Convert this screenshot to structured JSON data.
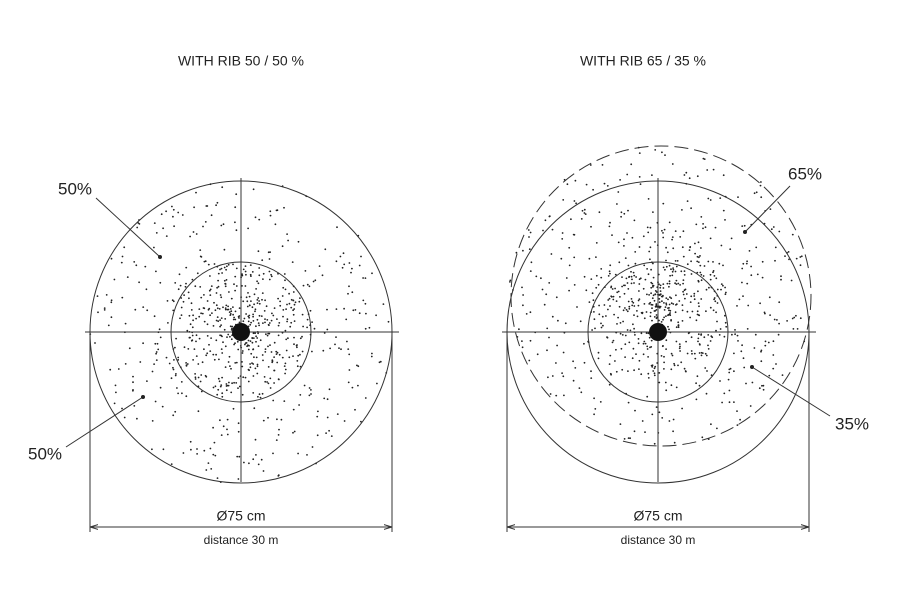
{
  "panels": [
    {
      "title": "WITH RIB 50 / 50 %",
      "upper_label": "50%",
      "lower_label": "50%",
      "diameter": "Ø75 cm",
      "distance": "distance 30 m"
    },
    {
      "title": "WITH RIB 65 / 35 %",
      "upper_label": "65%",
      "lower_label": "35%",
      "diameter": "Ø75 cm",
      "distance": "distance 30 m"
    }
  ]
}
